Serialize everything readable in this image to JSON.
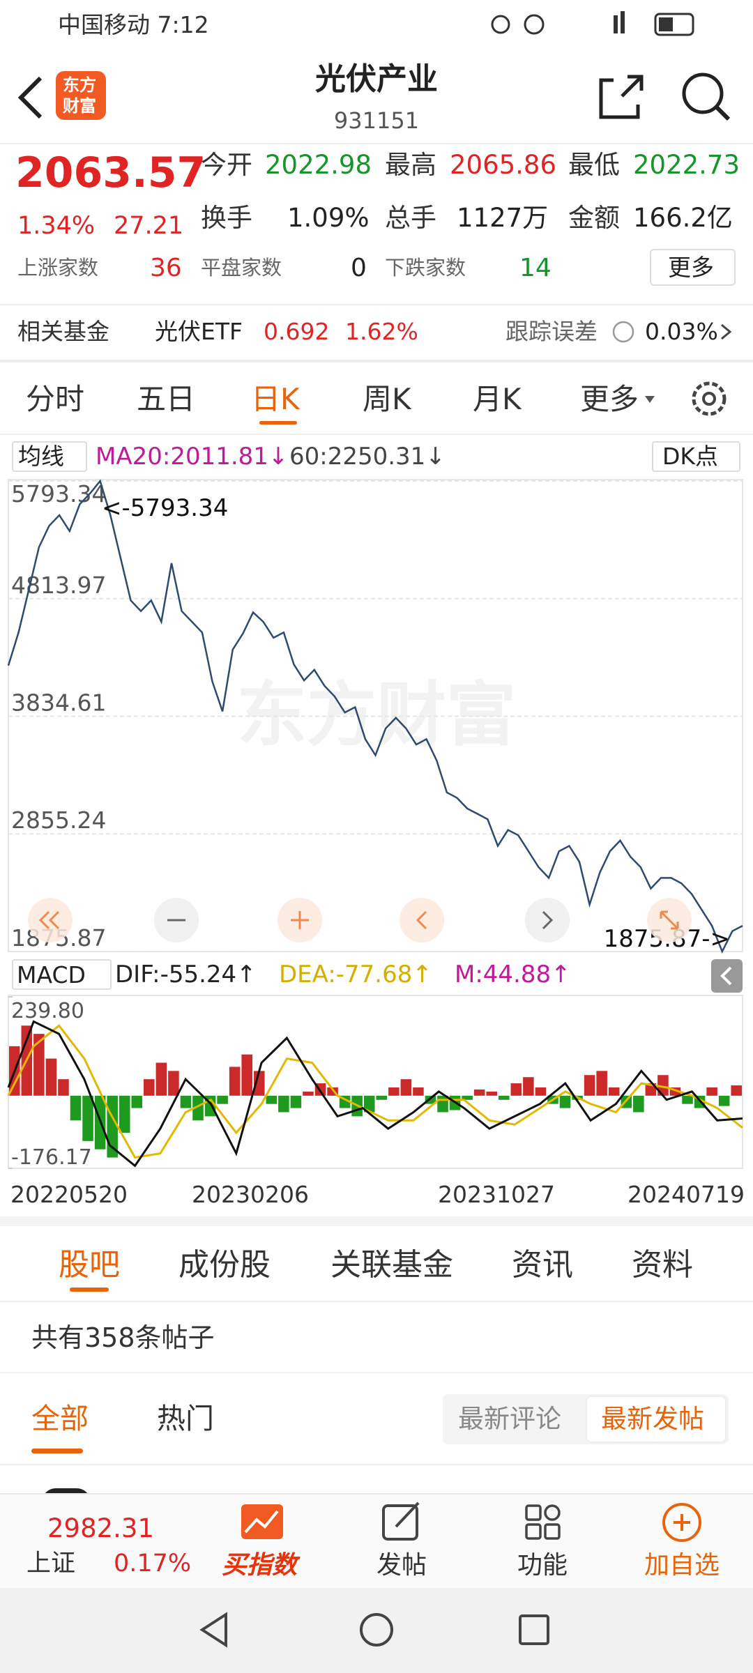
{
  "status_bar": {
    "carrier_time": "中国移动 7:12"
  },
  "header": {
    "logo_lines": [
      "东方",
      "财富"
    ],
    "title": "光伏产业",
    "code": "931151"
  },
  "quote": {
    "price": "2063.57",
    "change_pct": "1.34%",
    "change": "27.21",
    "stats": [
      {
        "label": "今开",
        "value": "2022.98"
      },
      {
        "label": "最高",
        "value": "2065.86"
      },
      {
        "label": "最低",
        "value": "2022.73"
      },
      {
        "label": "换手",
        "value": "1.09%"
      },
      {
        "label": "总手",
        "value": "1127万"
      },
      {
        "label": "金额",
        "value": "166.2亿"
      }
    ],
    "breadth": [
      {
        "label": "上涨家数",
        "value": "36"
      },
      {
        "label": "平盘家数",
        "value": "0"
      },
      {
        "label": "下跌家数",
        "value": "14"
      }
    ],
    "more": "更多"
  },
  "fund": {
    "label": "相关基金",
    "name": "光伏ETF",
    "price": "0.692",
    "change": "1.62%",
    "tracking_label": "跟踪误差",
    "tracking_value": "0.03%"
  },
  "period_tabs": [
    "分时",
    "五日",
    "日K",
    "周K",
    "月K",
    "更多"
  ],
  "chart": {
    "ma_button": "均线",
    "ma20": "MA20:2011.81↓",
    "ma60": "60:2250.31↓",
    "dk": "DK点",
    "watermark": "东方财富",
    "ylim": [
      1875.87,
      5793.34
    ],
    "yticks": [
      1875.87,
      2855.24,
      3834.61,
      4813.97,
      5793.34
    ],
    "high_label": "<-5793.34",
    "low_label": "1875.87->",
    "price_values": [
      4257,
      4532,
      4887,
      5242,
      5420,
      5509,
      5376,
      5600,
      5689,
      5793.34,
      5509,
      5154,
      4799,
      4710,
      4799,
      4621,
      5109,
      4710,
      4621,
      4532,
      4124,
      3875,
      4390,
      4523,
      4700,
      4621,
      4488,
      4532,
      4266,
      4133,
      4221,
      4088,
      3999,
      3866,
      3910,
      3644,
      3510,
      3733,
      3822,
      3733,
      3599,
      3644,
      3466,
      3200,
      3155,
      3067,
      3022,
      2977,
      2755,
      2888,
      2844,
      2711,
      2578,
      2489,
      2711,
      2755,
      2622,
      2267,
      2533,
      2711,
      2800,
      2666,
      2578,
      2400,
      2489,
      2489,
      2444,
      2356,
      2223,
      2090,
      1875.87,
      2046,
      2090
    ],
    "macd": {
      "button": "MACD",
      "dif": "DIF:-55.24↑",
      "dea": "DEA:-77.68↑",
      "m": "M:44.88↑",
      "ylim": [
        -176.17,
        239.8
      ],
      "yticks": [
        -176.17,
        {
          "value": 239.8,
          "label": "239.80"
        }
      ],
      "hist": [
        120,
        170,
        150,
        90,
        40,
        -60,
        -110,
        -130,
        -150,
        -90,
        -30,
        40,
        80,
        60,
        -30,
        -60,
        -50,
        -20,
        70,
        100,
        60,
        -20,
        -40,
        -30,
        10,
        30,
        20,
        -30,
        -50,
        -40,
        -10,
        20,
        40,
        20,
        -20,
        -40,
        -35,
        -10,
        15,
        10,
        -10,
        30,
        45,
        20,
        -20,
        -30,
        -10,
        50,
        60,
        20,
        -30,
        -40,
        30,
        50,
        20,
        -20,
        -30,
        20,
        -25,
        25
      ],
      "dif_values": [
        20,
        180,
        150,
        40,
        -120,
        -170,
        -80,
        40,
        -20,
        -140,
        80,
        140,
        40,
        -50,
        -30,
        -80,
        -40,
        10,
        -30,
        -80,
        -50,
        -20,
        30,
        -60,
        -20,
        60,
        -10,
        10,
        -60,
        -55.24
      ],
      "dea_values": [
        0,
        120,
        170,
        90,
        -40,
        -150,
        -140,
        -40,
        -10,
        -90,
        -20,
        90,
        80,
        0,
        -30,
        -60,
        -60,
        -10,
        -10,
        -60,
        -70,
        -30,
        10,
        -20,
        -40,
        30,
        20,
        0,
        -30,
        -77.68
      ]
    },
    "dates": [
      "20220520",
      "20230206",
      "20231027",
      "20240719"
    ]
  },
  "sections": {
    "tabs": [
      "股吧",
      "成份股",
      "关联基金",
      "资讯",
      "资料"
    ],
    "post_count": "共有358条帖子",
    "filters": [
      "全部",
      "热门"
    ],
    "sort": [
      "最新评论",
      "最新发帖"
    ]
  },
  "bottom_bar": {
    "index_value": "2982.31",
    "index_name": "上证",
    "index_change": "0.17%",
    "items": [
      "买指数",
      "发帖",
      "功能",
      "加自选"
    ]
  }
}
